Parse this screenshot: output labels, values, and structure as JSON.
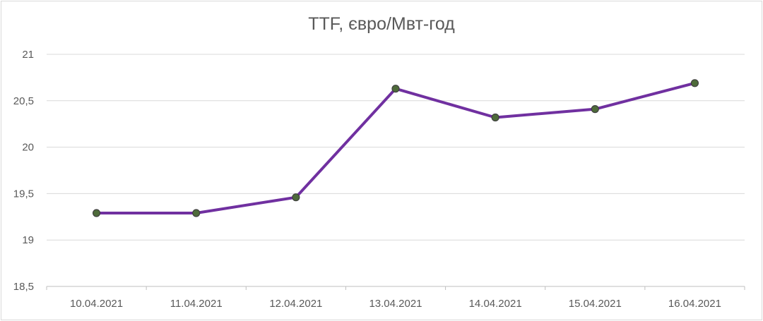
{
  "chart_data": {
    "type": "line",
    "title": "TTF, євро/Мвт-год",
    "x": [
      "10.04.2021",
      "11.04.2021",
      "12.04.2021",
      "13.04.2021",
      "14.04.2021",
      "15.04.2021",
      "16.04.2021"
    ],
    "series": [
      {
        "values": [
          19.29,
          19.29,
          19.46,
          20.63,
          20.32,
          20.41,
          20.69
        ]
      }
    ],
    "ylim": [
      18.5,
      21
    ],
    "y_ticks": [
      "18,5",
      "19",
      "19,5",
      "20",
      "20,5",
      "21"
    ],
    "y_tick_values": [
      18.5,
      19,
      19.5,
      20,
      20.5,
      21
    ],
    "grid": true,
    "legend": "none",
    "colors": {
      "line": "#7030a0",
      "marker_fill": "#4e6b3a",
      "marker_edge": "#404040",
      "grid": "#d9d9d9",
      "text": "#595959"
    }
  }
}
